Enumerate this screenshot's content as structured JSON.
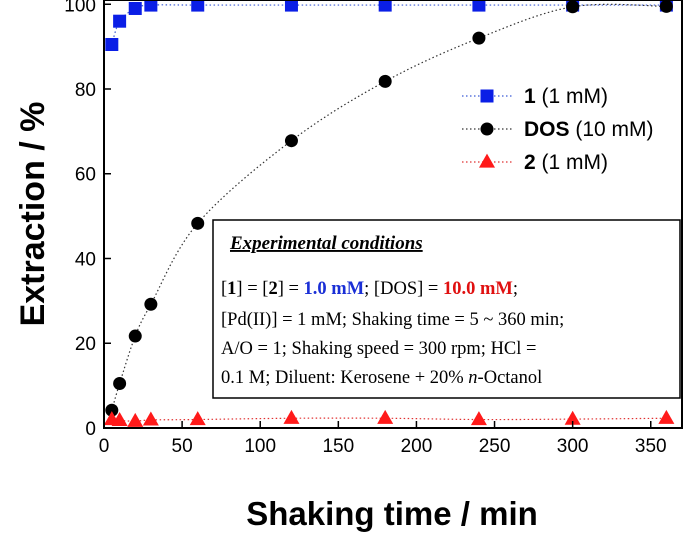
{
  "chart_data": {
    "type": "scatter",
    "xlabel": "Shaking time / min",
    "ylabel": "Extraction / %",
    "xlim": [
      0,
      370
    ],
    "ylim": [
      0,
      101
    ],
    "xticks": [
      0,
      50,
      100,
      150,
      200,
      250,
      300,
      350
    ],
    "yticks": [
      0,
      20,
      40,
      60,
      80,
      100
    ],
    "series": [
      {
        "name_bold": "1",
        "name_rest": " (1 mM)",
        "marker": "square",
        "color": "#0a1ee6",
        "line_color": "#3b5bd6",
        "x": [
          5,
          10,
          20,
          30,
          60,
          120,
          180,
          240,
          300,
          360
        ],
        "y": [
          90.5,
          96,
          99,
          99.8,
          99.8,
          99.8,
          99.8,
          99.8,
          99.8,
          99.8
        ]
      },
      {
        "name_bold": "DOS",
        "name_rest": " (10 mM)",
        "marker": "circle",
        "color": "#000000",
        "line_color": "#333333",
        "x": [
          5,
          10,
          20,
          30,
          60,
          120,
          180,
          240,
          300,
          360
        ],
        "y": [
          4.2,
          10.5,
          21.7,
          29.2,
          48.3,
          67.8,
          81.8,
          92,
          99.4,
          99.5
        ]
      },
      {
        "name_bold": "2",
        "name_rest": " (1 mM)",
        "marker": "triangle",
        "color": "#ff1a1a",
        "line_color": "#e03030",
        "x": [
          5,
          10,
          20,
          30,
          60,
          120,
          180,
          240,
          300,
          360
        ],
        "y": [
          2.0,
          1.8,
          1.6,
          1.9,
          2.0,
          2.3,
          2.3,
          2.0,
          2.1,
          2.3
        ]
      }
    ],
    "legend_position": "top-right",
    "conditions": {
      "title": "Experimental conditions",
      "line1": {
        "p1": "[",
        "b1": "1",
        "p2": "] = [",
        "b2": "2",
        "p3": "] = ",
        "hl1": "1.0 mM",
        "p4": "; [DOS] = ",
        "hl2": "10.0 mM",
        "p5": ";"
      },
      "line2": "[Pd(II)] = 1 mM;  Shaking time = 5 ~ 360 min;",
      "line3": "A/O = 1; Shaking speed = 300 rpm; HCl =",
      "line4_pre": "0.1 M; Diluent: Kerosene + 20% ",
      "line4_italic": "n",
      "line4_post": "-Octanol",
      "hl1_color": "#1a2fd6",
      "hl2_color": "#e01010"
    }
  }
}
